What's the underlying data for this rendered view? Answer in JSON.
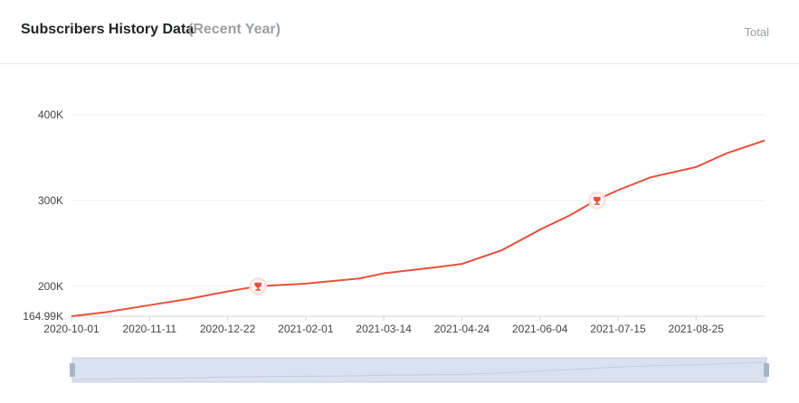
{
  "header": {
    "title": "Subscribers History Data",
    "subtitle": "(Recent Year)",
    "total_label": "Total"
  },
  "chart_data": {
    "type": "line",
    "title": "",
    "xlabel": "",
    "ylabel": "",
    "color": "#e8513a",
    "grid": true,
    "x_dates": [
      "2020-10-01",
      "2020-10-20",
      "2020-11-11",
      "2020-12-01",
      "2020-12-22",
      "2021-01-07",
      "2021-02-01",
      "2021-03-01",
      "2021-03-14",
      "2021-04-10",
      "2021-04-24",
      "2021-05-15",
      "2021-06-04",
      "2021-06-20",
      "2021-07-04",
      "2021-07-15",
      "2021-08-01",
      "2021-08-25",
      "2021-09-10",
      "2021-09-30"
    ],
    "values": [
      164990,
      170000,
      178000,
      185000,
      194000,
      200000,
      203000,
      209000,
      215000,
      222000,
      226000,
      242000,
      266000,
      283000,
      301000,
      312000,
      327000,
      339000,
      355000,
      370000
    ],
    "x_range": [
      "2020-10-01",
      "2021-09-30"
    ],
    "ylim": [
      164990,
      400000
    ],
    "y_ticks": [
      {
        "value": 164990,
        "label": "164.99K"
      },
      {
        "value": 200000,
        "label": "200K"
      },
      {
        "value": 300000,
        "label": "300K"
      },
      {
        "value": 400000,
        "label": "400K"
      }
    ],
    "x_ticks": [
      "2020-10-01",
      "2020-11-11",
      "2020-12-22",
      "2021-02-01",
      "2021-03-14",
      "2021-04-24",
      "2021-06-04",
      "2021-07-15",
      "2021-08-25"
    ],
    "milestones": [
      {
        "date": "2021-01-07",
        "value": 200000,
        "icon": "trophy-icon"
      },
      {
        "date": "2021-07-04",
        "value": 300000,
        "icon": "trophy-icon"
      }
    ]
  },
  "slider": {
    "handle_left_icon": "drag-handle-icon",
    "handle_right_icon": "drag-handle-icon"
  }
}
